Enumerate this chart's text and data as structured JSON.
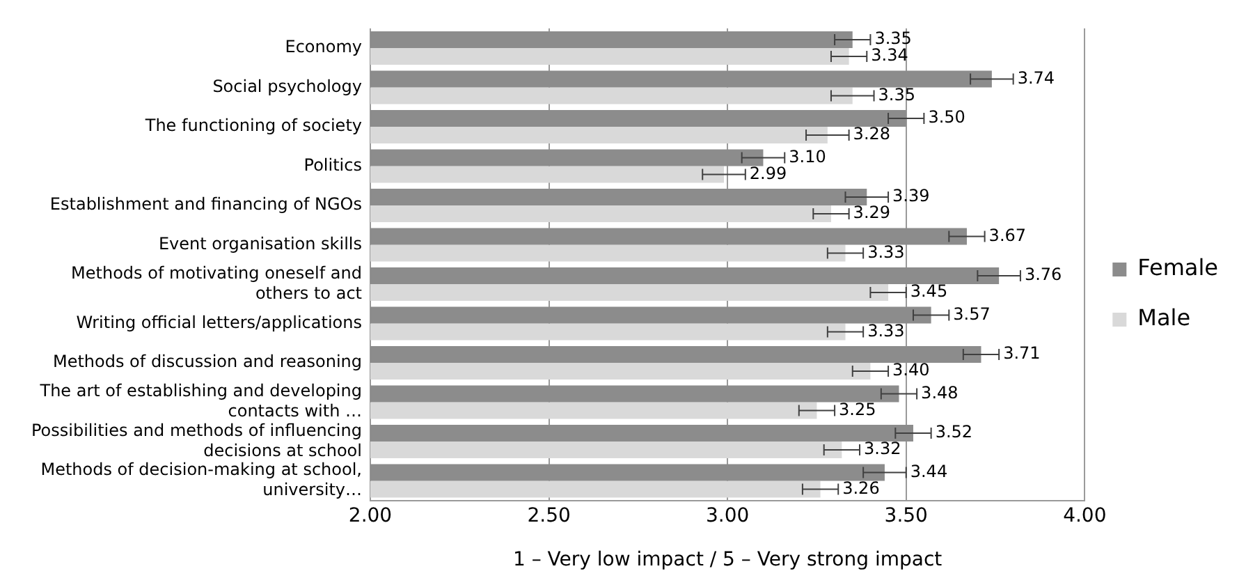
{
  "chart_data": {
    "type": "bar",
    "orientation": "horizontal",
    "xlabel": "1 – Very low impact / 5 – Very strong impact",
    "categories": [
      "Economy",
      "Social psychology",
      "The functioning of society",
      "Politics",
      "Establishment and financing of NGOs",
      "Event organisation skills",
      "Methods of motivating oneself and others to act",
      "Writing official letters/applications",
      "Methods of discussion and reasoning",
      "The art of establishing and developing contacts with …",
      "Possibilities and methods of influencing decisions at school",
      "Methods of decision-making at school, university…"
    ],
    "series": [
      {
        "name": "Female",
        "color": "#8c8c8c",
        "values": [
          3.35,
          3.74,
          3.5,
          3.1,
          3.39,
          3.67,
          3.76,
          3.57,
          3.71,
          3.48,
          3.52,
          3.44
        ],
        "errors": [
          0.05,
          0.06,
          0.05,
          0.06,
          0.06,
          0.05,
          0.06,
          0.05,
          0.05,
          0.05,
          0.05,
          0.06
        ],
        "value_labels": [
          "3.35",
          "3.74",
          "3.50",
          "3.10",
          "3.39",
          "3.67",
          "3.76",
          "3.57",
          "3.71",
          "3.48",
          "3.52",
          "3.44"
        ]
      },
      {
        "name": "Male",
        "color": "#d9d9d9",
        "values": [
          3.34,
          3.35,
          3.28,
          2.99,
          3.29,
          3.33,
          3.45,
          3.33,
          3.4,
          3.25,
          3.32,
          3.26
        ],
        "errors": [
          0.05,
          0.06,
          0.06,
          0.06,
          0.05,
          0.05,
          0.05,
          0.05,
          0.05,
          0.05,
          0.05,
          0.05
        ],
        "value_labels": [
          "3.34",
          "3.35",
          "3.28",
          "2.99",
          "3.29",
          "3.33",
          "3.45",
          "3.33",
          "3.40",
          "3.25",
          "3.32",
          "3.26"
        ]
      }
    ],
    "xlim": [
      2,
      4
    ],
    "xticks": [
      {
        "value": 2,
        "label": "2.00"
      },
      {
        "value": 2.5,
        "label": "2.50"
      },
      {
        "value": 3,
        "label": "3.00"
      },
      {
        "value": 3.5,
        "label": "3.50"
      },
      {
        "value": 4,
        "label": "4.00"
      }
    ],
    "grid": "x",
    "legend": "right"
  }
}
